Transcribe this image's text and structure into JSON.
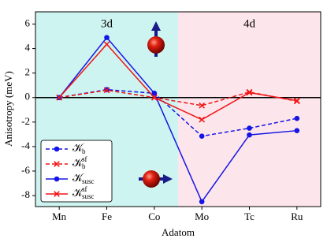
{
  "chart_data": {
    "type": "line",
    "x_label": "Adatom",
    "y_label": "Anisotropy (meV)",
    "categories": [
      "Mn",
      "Fe",
      "Co",
      "Mo",
      "Tc",
      "Ru"
    ],
    "regions": [
      {
        "label": "3d",
        "color": "#cdf4f0"
      },
      {
        "label": "4d",
        "color": "#fde5ec"
      }
    ],
    "ylim": [
      -8.9,
      7
    ],
    "yticks": [
      -8,
      -6,
      -4,
      -2,
      0,
      2,
      4,
      6
    ],
    "zero_line": true,
    "legend": "lower left",
    "series": [
      {
        "name": "𝒦",
        "subscript": "b",
        "color": "#1515e6",
        "linestyle": "dashed",
        "marker": "circle",
        "values": [
          0,
          0.65,
          0.35,
          -3.15,
          -2.5,
          -1.7
        ]
      },
      {
        "name": "𝒦",
        "subscript": "b",
        "superscript": "sf",
        "color": "#f01414",
        "linestyle": "dashed",
        "marker": "x",
        "values": [
          0,
          0.6,
          0,
          -0.65,
          0.45,
          -0.3
        ]
      },
      {
        "name": "𝒦",
        "subscript": "susc",
        "color": "#1515e6",
        "linestyle": "solid",
        "marker": "circle",
        "values": [
          0,
          4.9,
          0.35,
          -8.5,
          -3.05,
          -2.7
        ]
      },
      {
        "name": "𝒦",
        "subscript": "susc",
        "superscript": "sf",
        "color": "#f01414",
        "linestyle": "solid",
        "marker": "x",
        "values": [
          0,
          4.35,
          0,
          -1.8,
          0.4,
          -0.25
        ]
      }
    ]
  }
}
